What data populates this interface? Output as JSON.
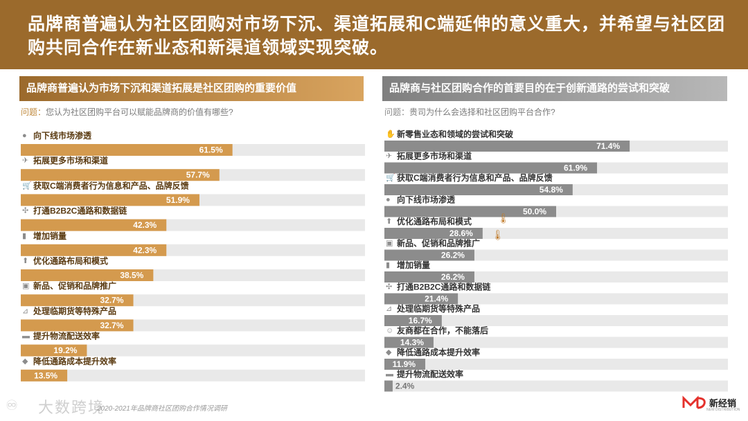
{
  "header": {
    "title": "品牌商普遍认为社区团购对市场下沉、渠道拓展和C端延伸的意义重大，并希望与社区团购共同合作在新业态和新渠道领域实现突破。"
  },
  "left": {
    "panel_title": "品牌商普遍认为市场下沉和渠道拓展是社区团购的重要价值",
    "question_label": "问题：",
    "question_text": "您认为社区团购平台可以赋能品牌商的价值有哪些?"
  },
  "right": {
    "panel_title": "品牌商与社区团购合作的首要目的在于创新通路的尝试和突破",
    "question_label": "问题：",
    "question_text": "贵司为什么会选择和社区团购平台合作?"
  },
  "chart_data": [
    {
      "type": "bar",
      "orientation": "horizontal",
      "title": "品牌商普遍认为市场下沉和渠道拓展是社区团购的重要价值",
      "unit": "%",
      "xlim": [
        0,
        100
      ],
      "color": "#d49a4e",
      "categories": [
        "向下线市场渗透",
        "拓展更多市场和渠道",
        "获取C端消费者行为信息和产品、品牌反馈",
        "打通B2B2C通路和数据链",
        "增加销量",
        "优化通路布局和模式",
        "新品、促销和品牌推广",
        "处理临期货等特殊产品",
        "提升物流配送效率",
        "降低通路成本提升效率"
      ],
      "icons": [
        "drop-icon",
        "plane-icon",
        "cart-icon",
        "network-icon",
        "bar-chart-icon",
        "up-arrow-icon",
        "new-tag-icon",
        "handcart-icon",
        "truck-icon",
        "money-bag-icon"
      ],
      "values": [
        61.5,
        57.7,
        51.9,
        42.3,
        42.3,
        38.5,
        32.7,
        32.7,
        19.2,
        13.5
      ],
      "labels": [
        "61.5%",
        "57.7%",
        "51.9%",
        "42.3%",
        "42.3%",
        "38.5%",
        "32.7%",
        "32.7%",
        "19.2%",
        "13.5%"
      ]
    },
    {
      "type": "bar",
      "orientation": "horizontal",
      "title": "品牌商与社区团购合作的首要目的在于创新通路的尝试和突破",
      "unit": "%",
      "xlim": [
        0,
        100
      ],
      "color": "#8c8c8c",
      "categories": [
        "新零售业态和领域的尝试和突破",
        "拓展更多市场和渠道",
        "获取C端消费者行为信息和产品、品牌反馈",
        "向下线市场渗透",
        "优化通路布局和模式",
        "新品、促销和品牌推广",
        "增加销量",
        "打通B2B2C通路和数据链",
        "处理临期货等特殊产品",
        "友商都在合作，不能落后",
        "降低通路成本提升效率",
        "提升物流配送效率"
      ],
      "icons": [
        "handshake-icon",
        "plane-icon",
        "cart-icon",
        "drop-icon",
        "up-arrow-icon",
        "new-tag-icon",
        "bar-chart-icon",
        "network-icon",
        "handcart-icon",
        "people-icon",
        "money-bag-icon",
        "truck-icon"
      ],
      "values": [
        71.4,
        61.9,
        54.8,
        50.0,
        28.6,
        26.2,
        26.2,
        21.4,
        16.7,
        14.3,
        11.9,
        2.4
      ],
      "labels": [
        "71.4%",
        "61.9%",
        "54.8%",
        "50.0%",
        "28.6%",
        "26.2%",
        "26.2%",
        "21.4%",
        "16.7%",
        "14.3%",
        "11.9%",
        "2.4%"
      ]
    }
  ],
  "footer": {
    "source": "2020-2021年品牌商社区团购合作情况调研",
    "watermark": "大数跨境",
    "brand": "新经销",
    "brand_sub": "NEW DISTRIBUTION"
  }
}
